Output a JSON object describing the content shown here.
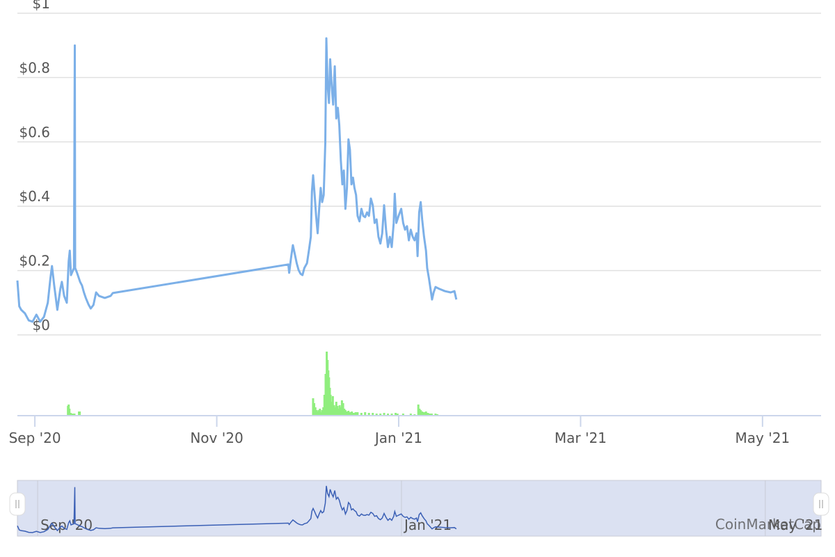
{
  "chart_data": {
    "type": "line",
    "color": "#7cb0e8",
    "x": [
      7.808,
      7.829,
      7.85,
      7.891,
      7.933,
      7.975,
      8.017,
      8.059,
      8.1,
      8.142,
      8.171,
      8.188,
      8.213,
      8.247,
      8.28,
      8.297,
      8.322,
      8.351,
      8.372,
      8.384,
      8.397,
      8.414,
      8.43,
      8.439,
      8.443,
      8.464,
      8.497,
      8.518,
      8.539,
      8.56,
      8.589,
      8.614,
      8.644,
      8.673,
      8.706,
      8.769,
      8.832,
      8.857,
      10.787,
      10.796,
      10.817,
      10.837,
      10.858,
      10.879,
      10.9,
      10.921,
      10.942,
      10.963,
      10.992,
      11.013,
      11.034,
      11.046,
      11.059,
      11.076,
      11.092,
      11.109,
      11.126,
      11.143,
      11.159,
      11.176,
      11.193,
      11.205,
      11.218,
      11.234,
      11.247,
      11.264,
      11.28,
      11.297,
      11.314,
      11.331,
      11.347,
      11.364,
      11.381,
      11.397,
      11.414,
      11.431,
      11.448,
      11.464,
      11.481,
      11.498,
      11.514,
      11.531,
      11.548,
      11.569,
      11.59,
      11.611,
      11.631,
      11.652,
      11.673,
      11.694,
      11.715,
      11.736,
      11.757,
      11.778,
      11.799,
      11.819,
      11.84,
      11.861,
      11.882,
      11.903,
      11.924,
      11.945,
      11.957,
      11.974,
      11.999,
      12.028,
      12.049,
      12.07,
      12.091,
      12.112,
      12.133,
      12.154,
      12.175,
      12.196,
      12.208,
      12.225,
      12.242,
      12.258,
      12.279,
      12.3,
      12.313,
      12.333,
      12.35,
      12.367,
      12.384,
      12.405,
      12.446,
      12.509,
      12.572,
      12.613,
      12.634
    ],
    "values": [
      0.169,
      0.089,
      0.078,
      0.067,
      0.045,
      0.041,
      0.063,
      0.041,
      0.056,
      0.1,
      0.175,
      0.214,
      0.154,
      0.078,
      0.143,
      0.165,
      0.121,
      0.1,
      0.229,
      0.262,
      0.186,
      0.197,
      0.208,
      0.9,
      0.208,
      0.193,
      0.165,
      0.154,
      0.132,
      0.115,
      0.095,
      0.082,
      0.093,
      0.132,
      0.121,
      0.115,
      0.121,
      0.13,
      0.219,
      0.193,
      0.24,
      0.279,
      0.251,
      0.223,
      0.201,
      0.19,
      0.186,
      0.208,
      0.223,
      0.262,
      0.305,
      0.446,
      0.496,
      0.435,
      0.37,
      0.316,
      0.392,
      0.457,
      0.413,
      0.435,
      0.597,
      0.922,
      0.781,
      0.721,
      0.857,
      0.771,
      0.716,
      0.835,
      0.673,
      0.706,
      0.652,
      0.543,
      0.468,
      0.511,
      0.392,
      0.457,
      0.608,
      0.576,
      0.468,
      0.489,
      0.457,
      0.435,
      0.37,
      0.353,
      0.392,
      0.37,
      0.366,
      0.381,
      0.37,
      0.424,
      0.403,
      0.348,
      0.359,
      0.305,
      0.284,
      0.316,
      0.403,
      0.327,
      0.273,
      0.305,
      0.273,
      0.348,
      0.439,
      0.348,
      0.37,
      0.392,
      0.348,
      0.327,
      0.338,
      0.294,
      0.327,
      0.305,
      0.294,
      0.316,
      0.245,
      0.381,
      0.413,
      0.359,
      0.305,
      0.262,
      0.208,
      0.175,
      0.143,
      0.11,
      0.132,
      0.149,
      0.143,
      0.136,
      0.132,
      0.136,
      0.11
    ],
    "xlim": [
      7.808,
      16.644
    ],
    "xticks": [
      {
        "value": 8,
        "label": "Sep '20"
      },
      {
        "value": 10,
        "label": "Nov '20"
      },
      {
        "value": 12,
        "label": "Jan '21"
      },
      {
        "value": 14,
        "label": "Mar '21"
      },
      {
        "value": 16,
        "label": "May '21"
      }
    ],
    "ylim": [
      0,
      1
    ],
    "yticks": [
      {
        "value": 0,
        "label": "$0"
      },
      {
        "value": 0.2,
        "label": "$0.2"
      },
      {
        "value": 0.4,
        "label": "$0.4"
      },
      {
        "value": 0.6,
        "label": "$0.6"
      },
      {
        "value": 0.8,
        "label": "$0.8"
      },
      {
        "value": 1,
        "label": "$1"
      }
    ],
    "grid": true,
    "volume": {
      "color": "#90ee7e",
      "ylim": [
        0,
        1
      ],
      "x": [
        8.364,
        8.372,
        8.38,
        8.393,
        8.414,
        8.435,
        8.485,
        8.493,
        11.059,
        11.071,
        11.084,
        11.097,
        11.109,
        11.122,
        11.134,
        11.147,
        11.159,
        11.172,
        11.184,
        11.197,
        11.209,
        11.218,
        11.226,
        11.234,
        11.243,
        11.251,
        11.264,
        11.276,
        11.289,
        11.301,
        11.314,
        11.326,
        11.339,
        11.351,
        11.364,
        11.376,
        11.389,
        11.402,
        11.414,
        11.431,
        11.448,
        11.464,
        11.485,
        11.506,
        11.527,
        11.548,
        11.59,
        11.631,
        11.673,
        11.715,
        11.757,
        11.799,
        11.84,
        11.882,
        11.924,
        11.966,
        11.987,
        12.049,
        12.133,
        12.175,
        12.216,
        12.229,
        12.242,
        12.258,
        12.279,
        12.3,
        12.321,
        12.342,
        12.363,
        12.405,
        12.425
      ],
      "values": [
        0.14,
        0.16,
        0.1,
        0.04,
        0.03,
        0.03,
        0.06,
        0.06,
        0.25,
        0.18,
        0.12,
        0.08,
        0.06,
        0.08,
        0.1,
        0.05,
        0.08,
        0.12,
        0.3,
        0.6,
        0.92,
        0.8,
        0.65,
        0.55,
        0.4,
        0.3,
        0.2,
        0.28,
        0.15,
        0.12,
        0.2,
        0.14,
        0.1,
        0.15,
        0.12,
        0.22,
        0.18,
        0.1,
        0.08,
        0.06,
        0.07,
        0.05,
        0.06,
        0.04,
        0.05,
        0.05,
        0.04,
        0.05,
        0.04,
        0.04,
        0.03,
        0.03,
        0.04,
        0.03,
        0.03,
        0.04,
        0.03,
        0.03,
        0.03,
        0.02,
        0.16,
        0.1,
        0.08,
        0.06,
        0.05,
        0.06,
        0.04,
        0.03,
        0.03,
        0.03,
        0.02
      ]
    },
    "navigator": {
      "color": "#3a5fb5",
      "fill": "#dbe1f2",
      "ticks": [
        0,
        2,
        4
      ]
    },
    "watermark": "CoinMarketCap"
  }
}
